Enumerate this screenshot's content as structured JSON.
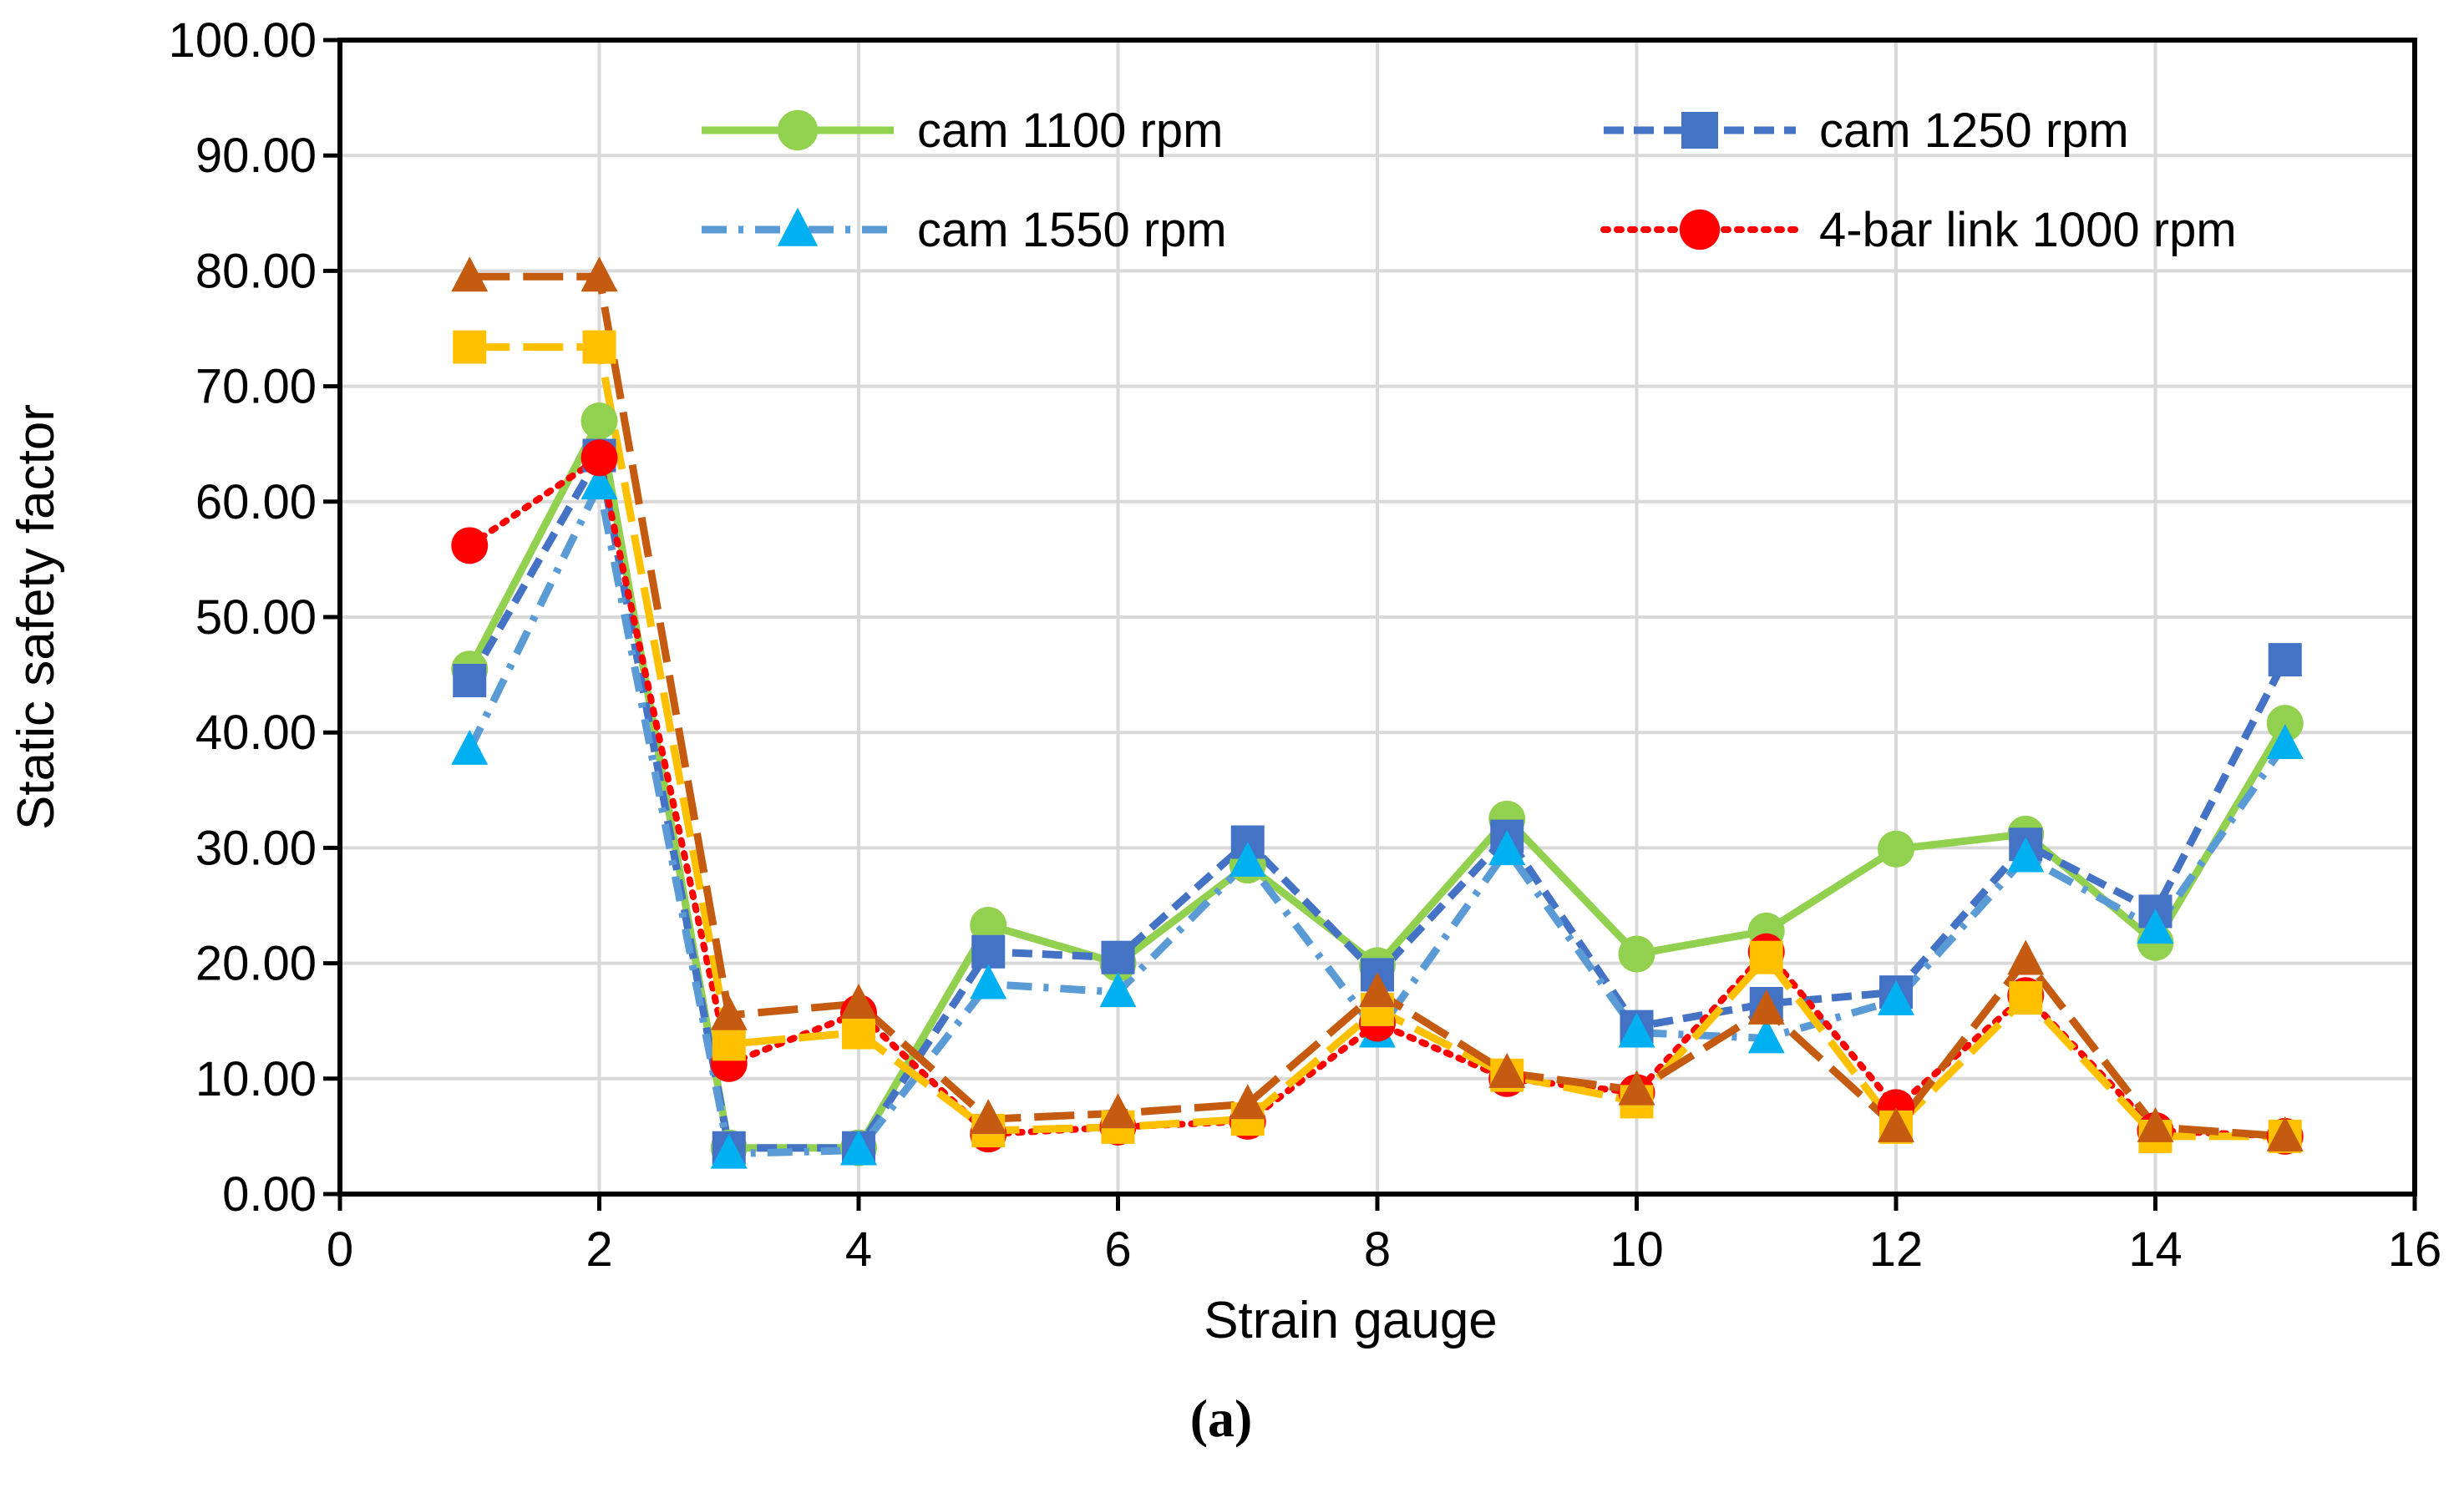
{
  "chart_data": {
    "type": "line",
    "title": "",
    "xlabel": "Strain gauge",
    "ylabel": "Static safety factor",
    "caption": "(a)",
    "xlim": [
      0,
      16
    ],
    "ylim": [
      0,
      100
    ],
    "x_ticks": [
      0,
      2,
      4,
      6,
      8,
      10,
      12,
      14,
      16
    ],
    "y_ticks": [
      0,
      10,
      20,
      30,
      40,
      50,
      60,
      70,
      80,
      90,
      100
    ],
    "y_tick_labels": [
      "0.00",
      "10.00",
      "20.00",
      "30.00",
      "40.00",
      "50.00",
      "60.00",
      "70.00",
      "80.00",
      "90.00",
      "100.00"
    ],
    "grid": true,
    "legend_position": "top",
    "x": [
      1,
      2,
      3,
      4,
      5,
      6,
      7,
      8,
      9,
      10,
      11,
      12,
      13,
      14,
      15
    ],
    "series": [
      {
        "name": "cam 1100 rpm",
        "color": "#92d050",
        "marker": "circle",
        "dash": "solid",
        "in_legend": true,
        "values": [
          45.5,
          67.0,
          4.0,
          4.0,
          23.3,
          20.0,
          28.5,
          19.8,
          32.5,
          20.8,
          22.8,
          29.9,
          31.2,
          21.8,
          40.8
        ]
      },
      {
        "name": "cam 1250 rpm",
        "color": "#4472c4",
        "marker": "square",
        "dash": "dash",
        "in_legend": true,
        "values": [
          44.5,
          64.0,
          4.0,
          4.0,
          21.0,
          20.5,
          30.5,
          19.0,
          31.0,
          14.5,
          16.5,
          17.5,
          30.3,
          24.5,
          46.3
        ]
      },
      {
        "name": "cam 1550 rpm",
        "color": "#5b9bd5",
        "marker_color": "#00b0f0",
        "marker": "triangle",
        "dash": "dashdot",
        "in_legend": true,
        "values": [
          38.5,
          61.5,
          3.5,
          3.8,
          18.2,
          17.5,
          28.8,
          14.0,
          29.8,
          14.0,
          13.5,
          16.8,
          29.2,
          23.0,
          39.0
        ]
      },
      {
        "name": "4-bar link 1000 rpm",
        "color": "#ff0000",
        "marker": "circle",
        "dash": "dot",
        "in_legend": true,
        "values": [
          56.2,
          63.8,
          11.3,
          15.7,
          5.2,
          5.8,
          6.3,
          14.8,
          10.0,
          8.8,
          21.0,
          7.5,
          17.2,
          5.5,
          5.0
        ]
      },
      {
        "name": "",
        "color": "#ffc000",
        "marker": "square",
        "dash": "longdash",
        "in_legend": false,
        "values": [
          73.4,
          73.4,
          13.0,
          14.0,
          5.5,
          5.8,
          6.5,
          16.0,
          10.3,
          8.0,
          20.5,
          5.8,
          17.0,
          5.0,
          5.0
        ]
      },
      {
        "name": "",
        "color": "#c55a11",
        "marker": "triangle",
        "dash": "longdash",
        "in_legend": false,
        "values": [
          79.5,
          79.5,
          15.5,
          16.5,
          6.5,
          7.0,
          7.8,
          17.5,
          10.5,
          9.0,
          16.0,
          5.8,
          20.3,
          5.8,
          5.0
        ]
      }
    ]
  }
}
